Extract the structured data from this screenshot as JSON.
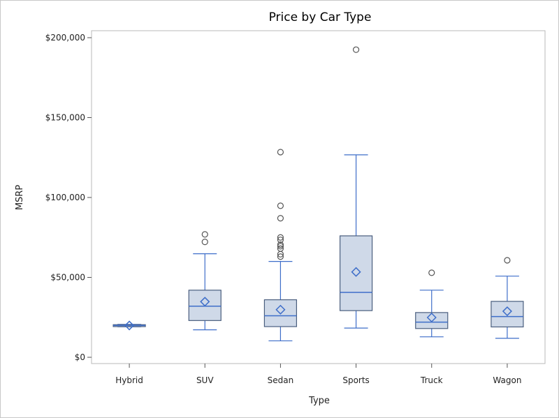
{
  "chart_data": {
    "type": "box",
    "title": "Price by Car Type",
    "xlabel": "Type",
    "ylabel": "MSRP",
    "ylim": [
      0,
      200000
    ],
    "yticks": [
      0,
      50000,
      100000,
      150000,
      200000
    ],
    "ytick_labels": [
      "$0",
      "$50,000",
      "$100,000",
      "$150,000",
      "$200,000"
    ],
    "grid": false,
    "legend": "none",
    "colors": {
      "box_fill": "#cfd9e8",
      "box_stroke": "#4a5e7e",
      "whisker": "#3e6ec9",
      "mean_marker": "#3e6ec9",
      "outlier": "#555555"
    },
    "categories": [
      "Hybrid",
      "SUV",
      "Sedan",
      "Sports",
      "Truck",
      "Wagon"
    ],
    "boxes": [
      {
        "category": "Hybrid",
        "min": 19100,
        "q1": 19200,
        "median": 19900,
        "q3": 20400,
        "max": 20600,
        "mean": 19900,
        "outliers": []
      },
      {
        "category": "SUV",
        "min": 17200,
        "q1": 23000,
        "median": 32000,
        "q3": 42000,
        "max": 64800,
        "mean": 34800,
        "outliers": [
          72200,
          76900
        ]
      },
      {
        "category": "Sedan",
        "min": 10300,
        "q1": 19200,
        "median": 26000,
        "q3": 36000,
        "max": 60000,
        "mean": 29800,
        "outliers": [
          63000,
          64500,
          68000,
          69500,
          70500,
          73500,
          75000,
          87000,
          94800,
          128400
        ]
      },
      {
        "category": "Sports",
        "min": 18300,
        "q1": 29200,
        "median": 40600,
        "q3": 76000,
        "max": 126700,
        "mean": 53400,
        "outliers": [
          192500
        ]
      },
      {
        "category": "Truck",
        "min": 12800,
        "q1": 18000,
        "median": 22000,
        "q3": 28000,
        "max": 42000,
        "mean": 24900,
        "outliers": [
          52900
        ]
      },
      {
        "category": "Wagon",
        "min": 11900,
        "q1": 19000,
        "median": 25500,
        "q3": 35000,
        "max": 50800,
        "mean": 28800,
        "outliers": [
          60700
        ]
      }
    ]
  }
}
